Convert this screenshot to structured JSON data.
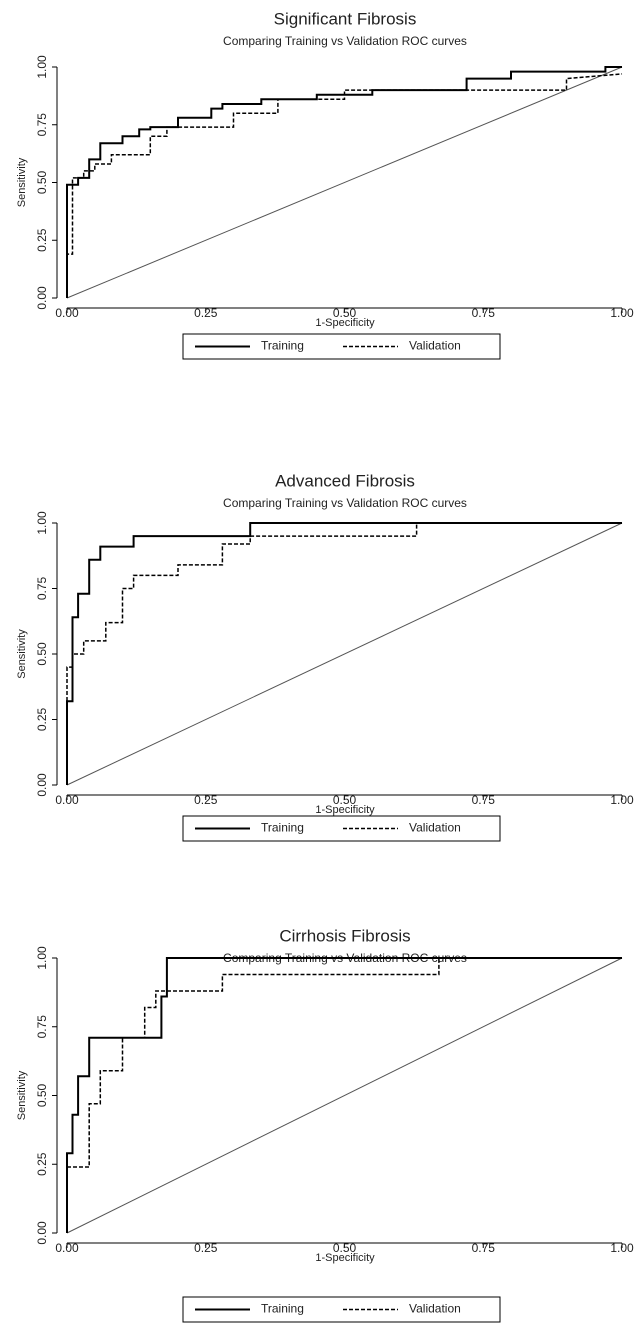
{
  "chart_data": [
    {
      "type": "line",
      "title": "Significant Fibrosis",
      "subtitle": "Comparing Training vs Validation ROC curves",
      "x_label": "1-Specificity",
      "y_label": "Sensitivity",
      "xlim": [
        0,
        1
      ],
      "ylim": [
        0,
        1
      ],
      "xticks": [
        {
          "value": 0,
          "label": "0.00"
        },
        {
          "value": 0.25,
          "label": "0.25"
        },
        {
          "value": 0.5,
          "label": "0.50"
        },
        {
          "value": 0.75,
          "label": "0.75"
        },
        {
          "value": 1,
          "label": "1.00"
        }
      ],
      "yticks": [
        {
          "value": 0,
          "label": "0.00"
        },
        {
          "value": 0.25,
          "label": "0.25"
        },
        {
          "value": 0.5,
          "label": "0.50"
        },
        {
          "value": 0.75,
          "label": "0.75"
        },
        {
          "value": 1,
          "label": "1.00"
        }
      ],
      "series": [
        {
          "name": "Training",
          "color": "#000000",
          "style": "solid",
          "x": [
            0,
            0,
            0.02,
            0.02,
            0.04,
            0.04,
            0.06,
            0.06,
            0.1,
            0.1,
            0.13,
            0.13,
            0.15,
            0.15,
            0.2,
            0.2,
            0.26,
            0.26,
            0.28,
            0.28,
            0.35,
            0.35,
            0.45,
            0.45,
            0.55,
            0.55,
            0.72,
            0.72,
            0.8,
            0.8,
            0.97,
            0.97,
            1
          ],
          "values": [
            0,
            0.49,
            0.49,
            0.52,
            0.52,
            0.6,
            0.6,
            0.67,
            0.67,
            0.7,
            0.7,
            0.73,
            0.73,
            0.74,
            0.74,
            0.78,
            0.78,
            0.82,
            0.82,
            0.84,
            0.84,
            0.86,
            0.86,
            0.88,
            0.88,
            0.9,
            0.9,
            0.95,
            0.95,
            0.98,
            0.98,
            1,
            1
          ]
        },
        {
          "name": "Validation",
          "color": "#000000",
          "style": "dashed",
          "x": [
            0,
            0,
            0.01,
            0.01,
            0.03,
            0.03,
            0.05,
            0.05,
            0.08,
            0.08,
            0.15,
            0.15,
            0.18,
            0.18,
            0.3,
            0.3,
            0.38,
            0.38,
            0.5,
            0.5,
            0.9,
            0.9,
            1
          ],
          "values": [
            0,
            0.19,
            0.19,
            0.52,
            0.52,
            0.55,
            0.55,
            0.58,
            0.58,
            0.62,
            0.62,
            0.7,
            0.7,
            0.74,
            0.74,
            0.8,
            0.8,
            0.86,
            0.86,
            0.9,
            0.9,
            0.95,
            0.97
          ]
        }
      ]
    },
    {
      "type": "line",
      "title": "Advanced Fibrosis",
      "subtitle": "Comparing Training vs Validation ROC curves",
      "x_label": "1-Specificity",
      "y_label": "Sensitivity",
      "xlim": [
        0,
        1
      ],
      "ylim": [
        0,
        1
      ],
      "xticks": [
        {
          "value": 0,
          "label": "0.00"
        },
        {
          "value": 0.25,
          "label": "0.25"
        },
        {
          "value": 0.5,
          "label": "0.50"
        },
        {
          "value": 0.75,
          "label": "0.75"
        },
        {
          "value": 1,
          "label": "1.00"
        }
      ],
      "yticks": [
        {
          "value": 0,
          "label": "0.00"
        },
        {
          "value": 0.25,
          "label": "0.25"
        },
        {
          "value": 0.5,
          "label": "0.50"
        },
        {
          "value": 0.75,
          "label": "0.75"
        },
        {
          "value": 1,
          "label": "1.00"
        }
      ],
      "series": [
        {
          "name": "Training",
          "color": "#000000",
          "style": "solid",
          "x": [
            0,
            0,
            0.01,
            0.01,
            0.02,
            0.02,
            0.04,
            0.04,
            0.06,
            0.06,
            0.07,
            0.07,
            0.12,
            0.12,
            0.33,
            0.33,
            1
          ],
          "values": [
            0,
            0.32,
            0.32,
            0.64,
            0.64,
            0.73,
            0.73,
            0.86,
            0.86,
            0.91,
            0.91,
            0.91,
            0.91,
            0.95,
            0.95,
            1,
            1
          ]
        },
        {
          "name": "Validation",
          "color": "#000000",
          "style": "dashed",
          "x": [
            0,
            0,
            0.01,
            0.01,
            0.03,
            0.03,
            0.07,
            0.07,
            0.1,
            0.1,
            0.12,
            0.12,
            0.2,
            0.2,
            0.28,
            0.28,
            0.33,
            0.33,
            0.63,
            0.63,
            1
          ],
          "values": [
            0,
            0.45,
            0.45,
            0.5,
            0.5,
            0.55,
            0.55,
            0.62,
            0.62,
            0.75,
            0.75,
            0.8,
            0.8,
            0.84,
            0.84,
            0.92,
            0.92,
            0.95,
            0.95,
            1,
            1
          ]
        }
      ]
    },
    {
      "type": "line",
      "title": "Cirrhosis Fibrosis",
      "subtitle": "Comparing Training vs Validation ROC curves",
      "x_label": "1-Specificity",
      "y_label": "Sensitivity",
      "xlim": [
        0,
        1
      ],
      "ylim": [
        0,
        1
      ],
      "xticks": [
        {
          "value": 0,
          "label": "0.00"
        },
        {
          "value": 0.25,
          "label": "0.25"
        },
        {
          "value": 0.5,
          "label": "0.50"
        },
        {
          "value": 0.75,
          "label": "0.75"
        },
        {
          "value": 1,
          "label": "1.00"
        }
      ],
      "yticks": [
        {
          "value": 0,
          "label": "0.00"
        },
        {
          "value": 0.25,
          "label": "0.25"
        },
        {
          "value": 0.5,
          "label": "0.50"
        },
        {
          "value": 0.75,
          "label": "0.75"
        },
        {
          "value": 1,
          "label": "1.00"
        }
      ],
      "series": [
        {
          "name": "Training",
          "color": "#000000",
          "style": "solid",
          "x": [
            0,
            0,
            0.01,
            0.01,
            0.02,
            0.02,
            0.04,
            0.04,
            0.17,
            0.17,
            0.18,
            0.18,
            1
          ],
          "values": [
            0,
            0.29,
            0.29,
            0.43,
            0.43,
            0.57,
            0.57,
            0.71,
            0.71,
            0.86,
            0.86,
            1,
            1
          ]
        },
        {
          "name": "Validation",
          "color": "#000000",
          "style": "dashed",
          "x": [
            0,
            0,
            0.04,
            0.04,
            0.06,
            0.06,
            0.1,
            0.1,
            0.14,
            0.14,
            0.16,
            0.16,
            0.28,
            0.28,
            0.67,
            0.67,
            1
          ],
          "values": [
            0,
            0.24,
            0.24,
            0.47,
            0.47,
            0.59,
            0.59,
            0.71,
            0.71,
            0.82,
            0.82,
            0.88,
            0.88,
            0.94,
            0.94,
            1,
            1
          ]
        }
      ]
    }
  ]
}
